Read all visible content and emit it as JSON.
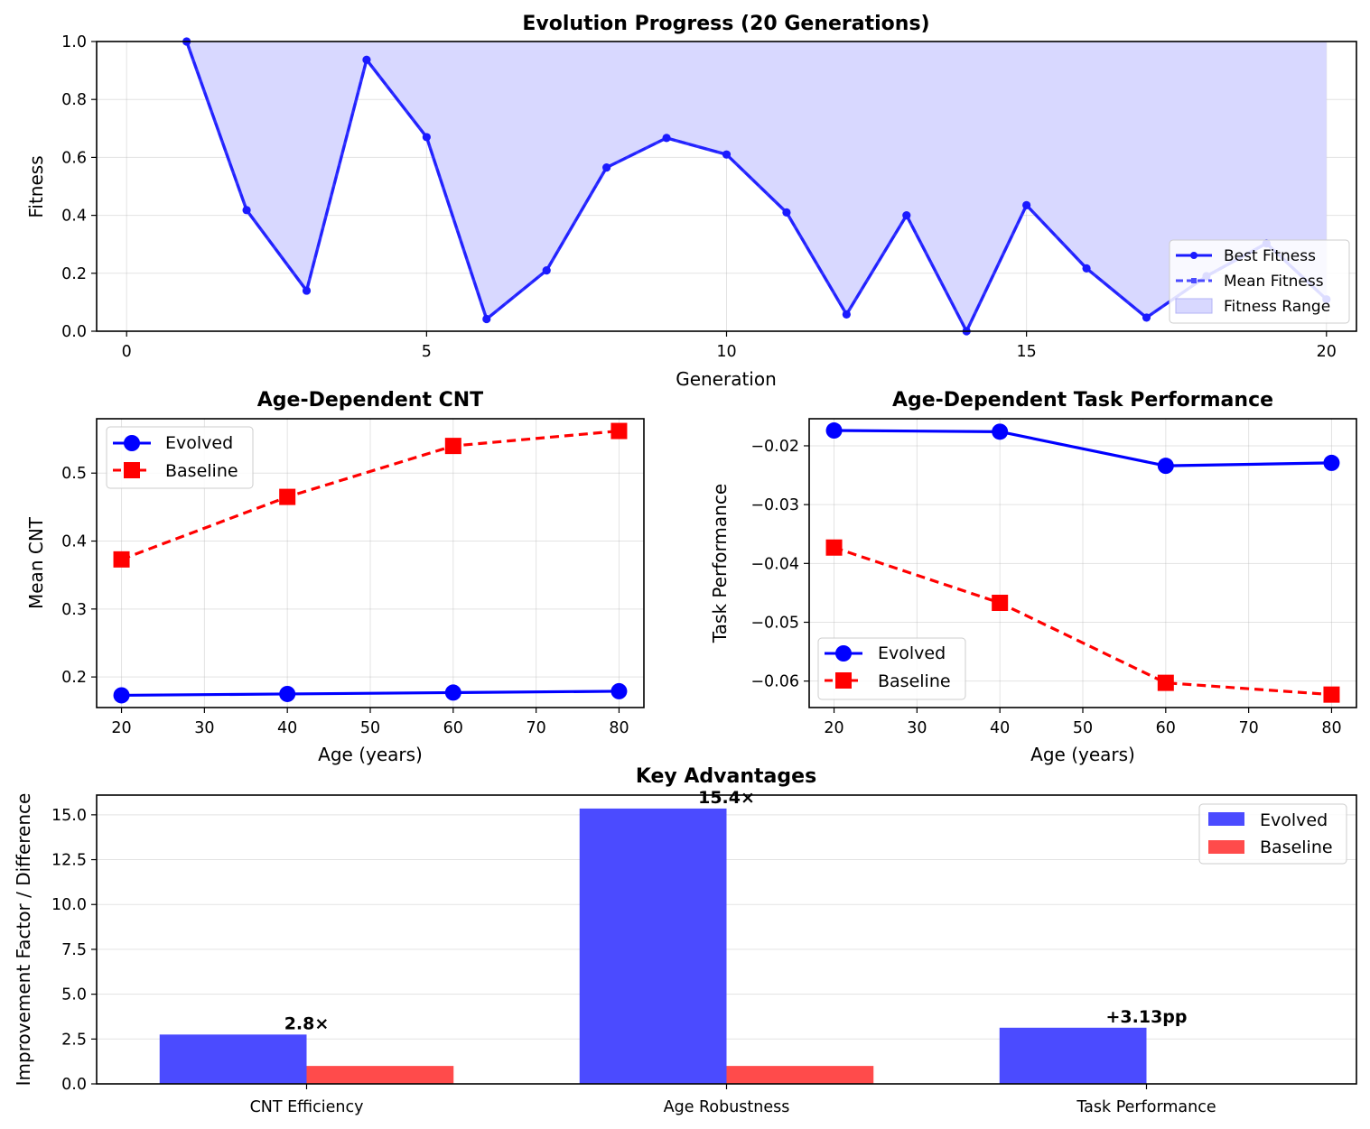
{
  "chart_data": [
    {
      "type": "line",
      "title": "Evolution Progress (20 Generations)",
      "xlabel": "Generation",
      "ylabel": "Fitness",
      "xlim": [
        -0.5,
        20.5
      ],
      "ylim": [
        0,
        1.0
      ],
      "xticks": [
        "0",
        "5",
        "10",
        "15",
        "20"
      ],
      "yticks": [
        "0.0",
        "0.2",
        "0.4",
        "0.6",
        "0.8",
        "1.0"
      ],
      "grid": true,
      "legend_position": "bottom-right",
      "x": [
        1,
        2,
        3,
        4,
        5,
        6,
        7,
        8,
        9,
        10,
        11,
        12,
        13,
        14,
        15,
        16,
        17,
        18,
        19,
        20
      ],
      "series": [
        {
          "name": "Best Fitness",
          "color": "#1a1aff",
          "values": [
            1.0,
            0.418,
            0.14,
            0.937,
            0.67,
            0.042,
            0.21,
            0.565,
            0.667,
            0.61,
            0.41,
            0.058,
            0.4,
            0.0,
            0.435,
            0.217,
            0.047,
            0.19,
            0.303,
            0.11
          ]
        },
        {
          "name": "Mean Fitness",
          "color": "#1a1aff",
          "values": [
            1.0,
            0.418,
            0.14,
            0.937,
            0.67,
            0.042,
            0.21,
            0.565,
            0.667,
            0.61,
            0.41,
            0.058,
            0.4,
            0.0,
            0.435,
            0.217,
            0.047,
            0.19,
            0.303,
            0.11
          ]
        },
        {
          "name": "Fitness Range",
          "color": "#d8d8ff",
          "upper": [
            1.0,
            1.0,
            1.0,
            1.0,
            1.0,
            1.0,
            1.0,
            1.0,
            1.0,
            1.0,
            1.0,
            1.0,
            1.0,
            1.0,
            1.0,
            1.0,
            1.0,
            1.0,
            1.0,
            1.0
          ],
          "lower": [
            1.0,
            0.418,
            0.14,
            0.937,
            0.67,
            0.042,
            0.21,
            0.565,
            0.667,
            0.61,
            0.41,
            0.058,
            0.4,
            0.0,
            0.435,
            0.217,
            0.047,
            0.19,
            0.303,
            0.11
          ]
        }
      ]
    },
    {
      "type": "line",
      "title": "Age-Dependent CNT",
      "xlabel": "Age (years)",
      "ylabel": "Mean CNT",
      "xlim": [
        17,
        83
      ],
      "ylim": [
        0.155,
        0.58
      ],
      "xticks": [
        "20",
        "30",
        "40",
        "50",
        "60",
        "70",
        "80"
      ],
      "yticks": [
        "0.2",
        "0.3",
        "0.4",
        "0.5"
      ],
      "grid": true,
      "legend_position": "top-left",
      "x": [
        20,
        40,
        60,
        80
      ],
      "series": [
        {
          "name": "Evolved",
          "color": "#0000ff",
          "values": [
            0.173,
            0.175,
            0.177,
            0.179
          ]
        },
        {
          "name": "Baseline",
          "color": "#ff0000",
          "values": [
            0.373,
            0.465,
            0.54,
            0.562
          ]
        }
      ]
    },
    {
      "type": "line",
      "title": "Age-Dependent Task Performance",
      "xlabel": "Age (years)",
      "ylabel": "Task Performance",
      "xlim": [
        17,
        83
      ],
      "ylim": [
        -0.0645,
        -0.0154
      ],
      "xticks": [
        "20",
        "30",
        "40",
        "50",
        "60",
        "70",
        "80"
      ],
      "yticks": [
        "−0.06",
        "−0.05",
        "−0.04",
        "−0.03",
        "−0.02"
      ],
      "grid": true,
      "legend_position": "bottom-left",
      "x": [
        20,
        40,
        60,
        80
      ],
      "series": [
        {
          "name": "Evolved",
          "color": "#0000ff",
          "values": [
            -0.0174,
            -0.0176,
            -0.0234,
            -0.0229
          ]
        },
        {
          "name": "Baseline",
          "color": "#ff0000",
          "values": [
            -0.0373,
            -0.0467,
            -0.0603,
            -0.0623
          ]
        }
      ]
    },
    {
      "type": "bar",
      "title": "Key Advantages",
      "xlabel": "",
      "ylabel": "Improvement Factor / Difference",
      "categories": [
        "CNT Efficiency",
        "Age Robustness",
        "Task Performance"
      ],
      "ylim": [
        0,
        16.1
      ],
      "yticks": [
        "0.0",
        "2.5",
        "5.0",
        "7.5",
        "10.0",
        "12.5",
        "15.0"
      ],
      "grid": true,
      "legend_position": "top-right",
      "series": [
        {
          "name": "Evolved",
          "color": "#4b4bff",
          "values": [
            2.75,
            15.35,
            3.13
          ]
        },
        {
          "name": "Baseline",
          "color": "#ff4b4b",
          "values": [
            1.0,
            1.0,
            0.0
          ]
        }
      ],
      "annotations": [
        "2.8×",
        "15.4×",
        "+3.13pp"
      ]
    }
  ]
}
